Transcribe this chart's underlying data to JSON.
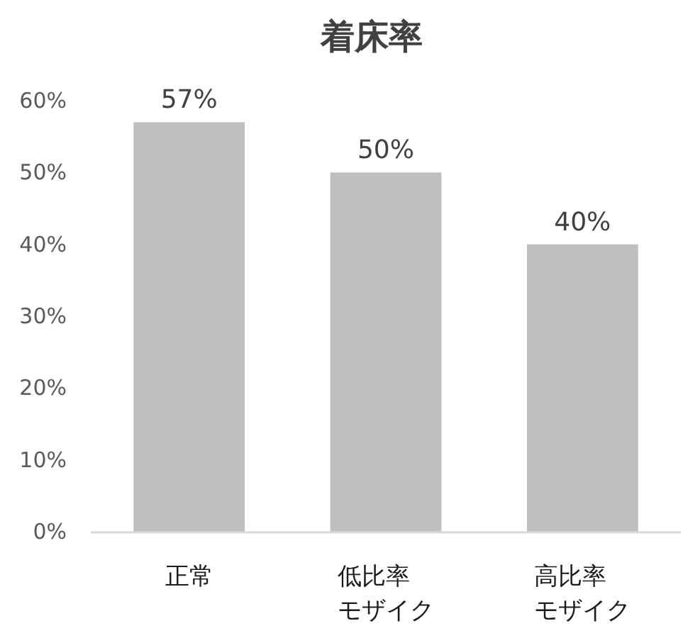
{
  "chart_data": {
    "type": "bar",
    "title": "着床率",
    "categories": [
      "正常",
      "低比率モザイク",
      "高比率モザイク"
    ],
    "values": [
      57,
      50,
      40
    ],
    "value_labels": [
      "57%",
      "50%",
      "40%"
    ],
    "color": "#bfbfbf",
    "ylim": [
      0,
      60
    ],
    "yticks": [
      {
        "value": 0,
        "label": "0%"
      },
      {
        "value": 10,
        "label": "10%"
      },
      {
        "value": 20,
        "label": "20%"
      },
      {
        "value": 30,
        "label": "30%"
      },
      {
        "value": 40,
        "label": "40%"
      },
      {
        "value": 50,
        "label": "50%"
      },
      {
        "value": 60,
        "label": "60%"
      }
    ]
  }
}
